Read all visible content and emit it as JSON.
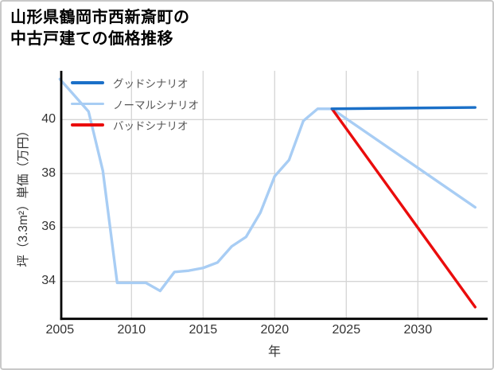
{
  "figure": {
    "background": "#ffffff",
    "border_color": "#c9c9c9"
  },
  "chart_data": {
    "type": "line",
    "title": "山形県鶴岡市西新斎町の\n中古戸建ての価格推移",
    "xlabel": "年",
    "ylabel": "坪（3.3m²）単価（万円）",
    "x_ticks": [
      2005,
      2010,
      2015,
      2020,
      2025,
      2030
    ],
    "y_ticks": [
      34,
      36,
      38,
      40
    ],
    "xlim": [
      2004.9,
      2035
    ],
    "ylim": [
      32.6,
      41.8
    ],
    "grid": true,
    "grid_color": "#d5d5d5",
    "axis_color": "#000000",
    "tick_label_color": "#333333",
    "legend_position": "upper-left",
    "legend_text_color": "#555555",
    "series": [
      {
        "name": "グッドシナリオ",
        "color": "#1b70c8",
        "x": [
          2024,
          2034
        ],
        "values": [
          40.4,
          40.45
        ]
      },
      {
        "name": "ノーマルシナリオ",
        "color": "#a8cdf4",
        "x": [
          2005,
          2006,
          2007,
          2008,
          2009,
          2010,
          2011,
          2012,
          2013,
          2014,
          2015,
          2016,
          2017,
          2018,
          2019,
          2020,
          2021,
          2022,
          2023,
          2024,
          2034
        ],
        "values": [
          41.5,
          40.9,
          40.3,
          38.1,
          33.95,
          33.95,
          33.95,
          33.65,
          34.35,
          34.4,
          34.5,
          34.7,
          35.3,
          35.65,
          36.55,
          37.9,
          38.5,
          39.95,
          40.4,
          40.4,
          36.75
        ]
      },
      {
        "name": "バッドシナリオ",
        "color": "#ea0c0c",
        "x": [
          2024,
          2034
        ],
        "values": [
          40.4,
          33.05
        ]
      }
    ]
  }
}
